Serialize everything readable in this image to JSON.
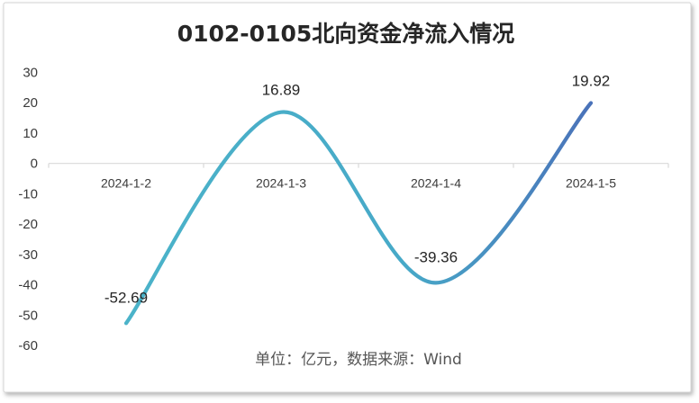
{
  "chart_data": {
    "type": "line",
    "title": "0102-0105北向资金净流入情况",
    "categories": [
      "2024-1-2",
      "2024-1-3",
      "2024-1-4",
      "2024-1-5"
    ],
    "series": [
      {
        "values": [
          -52.69,
          16.89,
          -39.36,
          19.92
        ]
      }
    ],
    "data_labels": [
      "-52.69",
      "16.89",
      "-39.36",
      "19.92"
    ],
    "y_ticks": [
      "30",
      "20",
      "10",
      "0",
      "-10",
      "-20",
      "-30",
      "-40",
      "-50",
      "-60"
    ],
    "ylim": [
      -60,
      30
    ],
    "smooth": true,
    "grid": false,
    "line_colors": [
      "#4bb3c9",
      "#4a72b9"
    ],
    "note": "单位：亿元，数据来源：Wind"
  }
}
